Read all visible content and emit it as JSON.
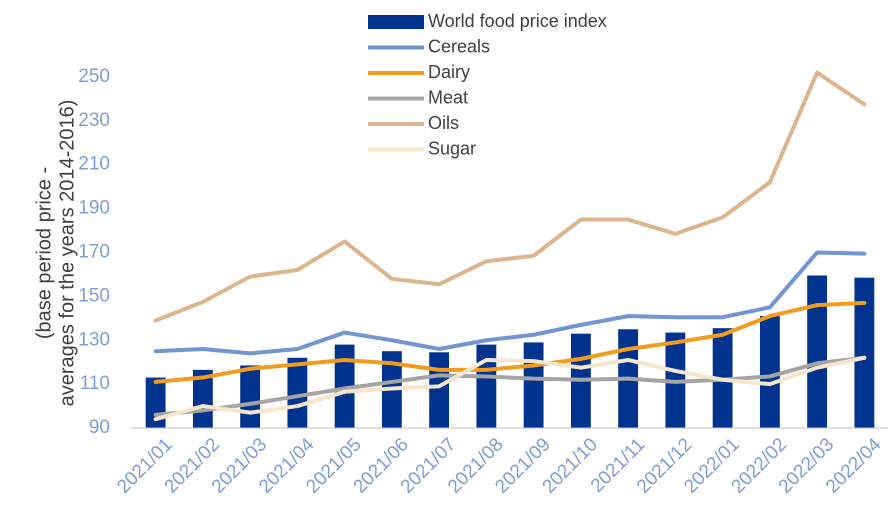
{
  "chart_data": {
    "type": "bar_line",
    "y_label": [
      "(base period price -",
      "averages for the years 2014-2016)"
    ],
    "categories": [
      "2021/01",
      "2021/02",
      "2021/03",
      "2021/04",
      "2021/05",
      "2021/06",
      "2021/07",
      "2021/08",
      "2021/09",
      "2021/10",
      "2021/11",
      "2021/12",
      "2022/01",
      "2022/02",
      "2022/03",
      "2022/04"
    ],
    "series": [
      {
        "name": "World food price index",
        "type": "bar",
        "color": "#00338d",
        "values": [
          113,
          116.5,
          118.5,
          122,
          128,
          125,
          124.5,
          128,
          129,
          133,
          135,
          133.5,
          135.5,
          141,
          159.5,
          158.5
        ]
      },
      {
        "name": "Cereals",
        "type": "line",
        "color": "#7295d2",
        "values": [
          125,
          126,
          124,
          126,
          133.5,
          130,
          126,
          130,
          132.5,
          137,
          141,
          140.5,
          140.5,
          145,
          170,
          169.5
        ]
      },
      {
        "name": "Dairy",
        "type": "line",
        "color": "#f29c1f",
        "values": [
          111,
          113,
          117,
          119,
          121,
          119.5,
          116.5,
          116.5,
          118.5,
          121.5,
          126,
          129,
          132.5,
          141,
          146,
          147
        ]
      },
      {
        "name": "Meat",
        "type": "line",
        "color": "#a5a5a5",
        "values": [
          96,
          98,
          101,
          104.5,
          108,
          111,
          114,
          113.5,
          112.5,
          112,
          112.5,
          111,
          112,
          113.5,
          119.5,
          122
        ]
      },
      {
        "name": "Oils",
        "type": "line",
        "color": "#dcb58e",
        "values": [
          139,
          147.5,
          159,
          162,
          175,
          158,
          155.5,
          166,
          168.5,
          185,
          185,
          178.5,
          186,
          202,
          252,
          237.5
        ]
      },
      {
        "name": "Sugar",
        "type": "line",
        "color": "#f6e6cc",
        "values": [
          94,
          100,
          97,
          100,
          106.5,
          108,
          109,
          121,
          120.5,
          117.5,
          121,
          116,
          112,
          110,
          117.5,
          122
        ]
      }
    ],
    "ylim": [
      90,
      260
    ],
    "yticks": [
      90,
      110,
      130,
      150,
      170,
      190,
      210,
      230,
      250
    ],
    "grid": false,
    "legend": "top"
  }
}
